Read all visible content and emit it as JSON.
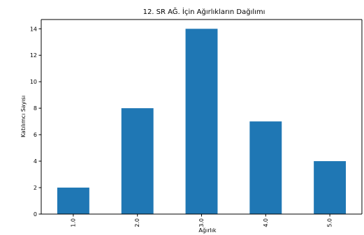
{
  "chart_data": {
    "type": "bar",
    "title": "12. SR AĞ. İçin Ağırlıkların Dağılımı",
    "xlabel": "Ağırlık",
    "ylabel": "Katılımcı Sayısı",
    "categories": [
      "1.0",
      "2.0",
      "3.0",
      "4.0",
      "5.0"
    ],
    "values": [
      2,
      8,
      14,
      7,
      4
    ],
    "ylim": [
      0,
      14.7
    ],
    "yticks": [
      "0",
      "2",
      "4",
      "6",
      "8",
      "10",
      "12",
      "14"
    ],
    "bar_color": "#1f77b4",
    "grid": false,
    "legend": "none"
  }
}
